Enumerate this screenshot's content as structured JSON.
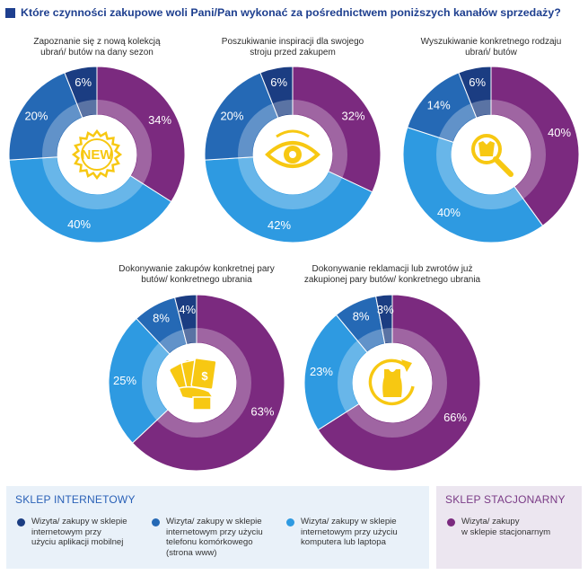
{
  "header": {
    "title": "Które czynności zakupowe woli Pani/Pan wykonać za pośrednictwem poniższych kanałów sprzedaży?"
  },
  "colors": {
    "mobile_app": "#1b3d82",
    "mobile_web": "#2569b5",
    "computer": "#2e9ae1",
    "store": "#7b2a7f",
    "icon": "#f7c812"
  },
  "chart_data": [
    {
      "type": "pie",
      "title": "Zapoznanie się z nową kolekcją ubrań/ butów na dany sezon",
      "icon": "new-badge-icon",
      "categories": [
        "Wizyta/ zakupy w sklepie stacjonarnym",
        "Wizyta/ zakupy w sklepie internetowym przy użyciu komputera lub laptopa",
        "Wizyta/ zakupy w sklepie internetowym przy użyciu telefonu komórkowego (strona www)",
        "Wizyta/ zakupy w sklepie internetowym przy użyciu aplikacji mobilnej"
      ],
      "values": [
        34,
        40,
        20,
        6
      ],
      "labels": [
        "34%",
        "40%",
        "20%",
        "6%"
      ]
    },
    {
      "type": "pie",
      "title": "Poszukiwanie inspiracji dla swojego stroju przed zakupem",
      "icon": "eye-icon",
      "categories": [
        "Wizyta/ zakupy w sklepie stacjonarnym",
        "Wizyta/ zakupy w sklepie internetowym przy użyciu komputera lub laptopa",
        "Wizyta/ zakupy w sklepie internetowym przy użyciu telefonu komórkowego (strona www)",
        "Wizyta/ zakupy w sklepie internetowym przy użyciu aplikacji mobilnej"
      ],
      "values": [
        32,
        42,
        20,
        6
      ],
      "labels": [
        "32%",
        "42%",
        "20%",
        "6%"
      ]
    },
    {
      "type": "pie",
      "title": "Wyszukiwanie konkretnego rodzaju ubrań/ butów",
      "icon": "magnifier-icon",
      "categories": [
        "Wizyta/ zakupy w sklepie stacjonarnym",
        "Wizyta/ zakupy w sklepie internetowym przy użyciu komputera lub laptopa",
        "Wizyta/ zakupy w sklepie internetowym przy użyciu telefonu komórkowego (strona www)",
        "Wizyta/ zakupy w sklepie internetowym przy użyciu aplikacji mobilnej"
      ],
      "values": [
        40,
        40,
        14,
        6
      ],
      "labels": [
        "40%",
        "40%",
        "14%",
        "6%"
      ]
    },
    {
      "type": "pie",
      "title": "Dokonywanie zakupów konkretnej pary butów/ konkretnego ubrania",
      "icon": "money-hand-icon",
      "categories": [
        "Wizyta/ zakupy w sklepie stacjonarnym",
        "Wizyta/ zakupy w sklepie internetowym przy użyciu komputera lub laptopa",
        "Wizyta/ zakupy w sklepie internetowym przy użyciu telefonu komórkowego (strona www)",
        "Wizyta/ zakupy w sklepie internetowym przy użyciu aplikacji mobilnej"
      ],
      "values": [
        63,
        25,
        8,
        4
      ],
      "labels": [
        "63%",
        "25%",
        "8%",
        "4%"
      ]
    },
    {
      "type": "pie",
      "title": "Dokonywanie reklamacji lub zwrotów już zakupionej pary butów/ konkretnego ubrania",
      "icon": "return-shirt-icon",
      "categories": [
        "Wizyta/ zakupy w sklepie stacjonarnym",
        "Wizyta/ zakupy w sklepie internetowym przy użyciu komputera lub laptopa",
        "Wizyta/ zakupy w sklepie internetowym przy użyciu telefonu komórkowego (strona www)",
        "Wizyta/ zakupy w sklepie internetowym przy użyciu aplikacji mobilnej"
      ],
      "values": [
        66,
        23,
        8,
        3
      ],
      "labels": [
        "66%",
        "23%",
        "8%",
        "3%"
      ]
    }
  ],
  "legend": {
    "online_heading": "SKLEP INTERNETOWY",
    "store_heading": "SKLEP STACJONARNY",
    "items": [
      {
        "text": "Wizyta/ zakupy w sklepie\ninternetowym przy\nużyciu aplikacji mobilnej",
        "color": "#1b3d82"
      },
      {
        "text": "Wizyta/ zakupy w sklepie\ninternetowym przy użyciu\ntelefonu komórkowego\n(strona www)",
        "color": "#2569b5"
      },
      {
        "text": "Wizyta/ zakupy w sklepie\ninternetowym przy użyciu\nkomputera lub laptopa",
        "color": "#2e9ae1"
      },
      {
        "text": "Wizyta/ zakupy\nw sklepie stacjonarnym",
        "color": "#7b2a7f"
      }
    ]
  }
}
